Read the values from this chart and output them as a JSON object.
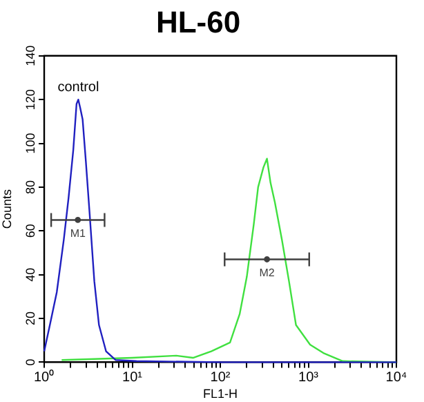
{
  "chart_data": {
    "type": "line",
    "title": "HL-60",
    "xlabel": "FL1-H",
    "ylabel": "Counts",
    "log": "x",
    "grid": false,
    "legend": false,
    "line_style": "solid",
    "xlim": [
      1,
      10000
    ],
    "xticks": [
      {
        "value": 1,
        "label": "10⁰"
      },
      {
        "value": 2,
        "label": null
      },
      {
        "value": 3,
        "label": null
      },
      {
        "value": 4,
        "label": null
      },
      {
        "value": 5,
        "label": null
      },
      {
        "value": 6,
        "label": null
      },
      {
        "value": 7,
        "label": null
      },
      {
        "value": 8,
        "label": null
      },
      {
        "value": 9,
        "label": null
      },
      {
        "value": 10,
        "label": "10¹"
      },
      {
        "value": 20,
        "label": null
      },
      {
        "value": 30,
        "label": null
      },
      {
        "value": 40,
        "label": null
      },
      {
        "value": 50,
        "label": null
      },
      {
        "value": 60,
        "label": null
      },
      {
        "value": 70,
        "label": null
      },
      {
        "value": 80,
        "label": null
      },
      {
        "value": 90,
        "label": null
      },
      {
        "value": 100,
        "label": "10²"
      },
      {
        "value": 200,
        "label": null
      },
      {
        "value": 300,
        "label": null
      },
      {
        "value": 400,
        "label": null
      },
      {
        "value": 500,
        "label": null
      },
      {
        "value": 600,
        "label": null
      },
      {
        "value": 700,
        "label": null
      },
      {
        "value": 800,
        "label": null
      },
      {
        "value": 900,
        "label": null
      },
      {
        "value": 1000,
        "label": "10³"
      },
      {
        "value": 2000,
        "label": null
      },
      {
        "value": 3000,
        "label": null
      },
      {
        "value": 4000,
        "label": null
      },
      {
        "value": 5000,
        "label": null
      },
      {
        "value": 6000,
        "label": null
      },
      {
        "value": 7000,
        "label": null
      },
      {
        "value": 8000,
        "label": null
      },
      {
        "value": 9000,
        "label": null
      },
      {
        "value": 10000,
        "label": "10⁴"
      }
    ],
    "ylim": [
      0,
      140
    ],
    "yticks": [
      0,
      20,
      40,
      60,
      80,
      100,
      120,
      140
    ],
    "series": [
      {
        "name": "control",
        "color": "#2020c0",
        "x": [
          1,
          1.16,
          1.39,
          1.67,
          1.89,
          2.14,
          2.33,
          2.44,
          2.57,
          2.73,
          2.97,
          3.28,
          3.71,
          4.19,
          5.04,
          6.46,
          11.2,
          100,
          1000,
          10000
        ],
        "values": [
          5,
          17,
          32,
          56,
          75,
          97,
          118,
          120,
          116,
          111,
          92,
          68,
          37,
          17,
          5,
          1,
          0.5,
          0,
          0,
          0
        ]
      },
      {
        "color": "#40e040",
        "x": [
          1.58,
          10,
          31.6,
          49,
          79,
          129,
          166,
          200,
          240,
          269,
          309,
          339,
          372,
          417,
          501,
          603,
          724,
          1047,
          1514,
          2455,
          10000
        ],
        "values": [
          1,
          2,
          3,
          2,
          5,
          9,
          22,
          39,
          63,
          80,
          89,
          93,
          82,
          73,
          56,
          37,
          17,
          8,
          4,
          0.5,
          0
        ]
      },
      {
        "name": "M1",
        "type": "scatter",
        "color": "#404040",
        "x": [
          2.41
        ],
        "values": [
          65
        ],
        "xerrors": [
          [
            1.2,
            4.85
          ]
        ]
      },
      {
        "name": "M2",
        "type": "scatter",
        "color": "#404040",
        "x": [
          339
        ],
        "values": [
          47
        ],
        "xerrors": [
          [
            112,
            1023
          ]
        ]
      }
    ]
  }
}
